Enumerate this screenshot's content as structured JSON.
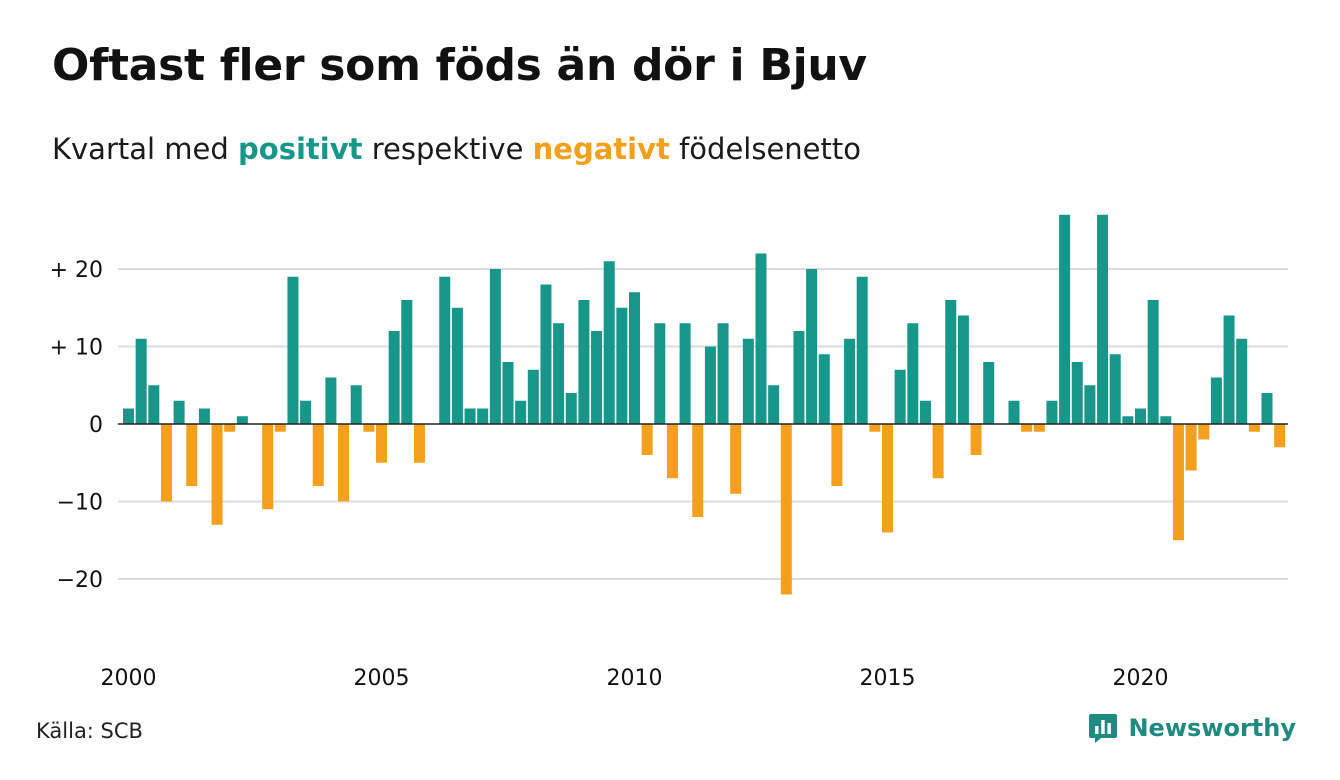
{
  "title": "Oftast fler som föds än dör i Bjuv",
  "subtitle": {
    "prefix": "Kvartal med",
    "positive": "positivt",
    "middle": "respektive",
    "negative": "negativt",
    "suffix": "födelsenetto"
  },
  "source": "Källa: SCB",
  "brand": {
    "name": "Newsworthy",
    "icon": "newsworthy-logo-icon"
  },
  "colors": {
    "positive": "#17968a",
    "negative": "#f4a01c",
    "grid": "#dddddd",
    "zero": "#222222"
  },
  "chart_data": {
    "type": "bar",
    "x_start": "2000 Q1",
    "frequency": "quarterly",
    "values": [
      2,
      11,
      5,
      -10,
      3,
      -8,
      2,
      -13,
      -1,
      1,
      0,
      -11,
      -1,
      19,
      3,
      -8,
      6,
      -10,
      5,
      -1,
      -5,
      12,
      16,
      -5,
      0,
      19,
      15,
      2,
      2,
      20,
      8,
      3,
      7,
      18,
      13,
      4,
      16,
      12,
      21,
      15,
      17,
      -4,
      13,
      -7,
      13,
      -12,
      10,
      13,
      -9,
      11,
      22,
      5,
      -22,
      12,
      20,
      9,
      -8,
      11,
      19,
      -1,
      -14,
      7,
      13,
      3,
      -7,
      16,
      14,
      -4,
      8,
      0,
      3,
      -1,
      -1,
      3,
      27,
      8,
      5,
      27,
      9,
      1,
      2,
      16,
      1,
      -15,
      -6,
      -2,
      6,
      14,
      11,
      -1,
      4,
      -3
    ],
    "x_tick_labels": [
      "2000",
      "2005",
      "2010",
      "2015",
      "2020"
    ],
    "y_ticks": [
      20,
      10,
      0,
      -10,
      -20
    ],
    "y_tick_labels": [
      "+ 20",
      "+ 10",
      "0",
      "−10",
      "−20"
    ],
    "ylim": [
      -24,
      28
    ],
    "grid": true,
    "legend": "none"
  }
}
